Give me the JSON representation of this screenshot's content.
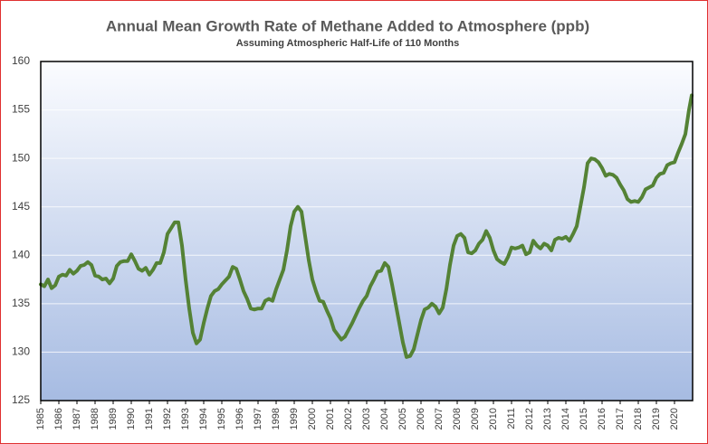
{
  "chart_data": {
    "type": "line",
    "title": "Annual Mean Growth Rate of Methane Added to Atmosphere (ppb)",
    "subtitle": "Assuming Atmospheric Half-Life of 110 Months",
    "x": [
      1985.0,
      1985.2,
      1985.4,
      1985.6,
      1985.8,
      1986.0,
      1986.2,
      1986.4,
      1986.6,
      1986.8,
      1987.0,
      1987.2,
      1987.4,
      1987.6,
      1987.8,
      1988.0,
      1988.2,
      1988.4,
      1988.6,
      1988.8,
      1989.0,
      1989.2,
      1989.4,
      1989.6,
      1989.8,
      1990.0,
      1990.2,
      1990.4,
      1990.6,
      1990.8,
      1991.0,
      1991.2,
      1991.4,
      1991.6,
      1991.8,
      1992.0,
      1992.2,
      1992.4,
      1992.6,
      1992.8,
      1993.0,
      1993.2,
      1993.4,
      1993.6,
      1993.8,
      1994.0,
      1994.2,
      1994.4,
      1994.6,
      1994.8,
      1995.0,
      1995.2,
      1995.4,
      1995.6,
      1995.8,
      1996.0,
      1996.2,
      1996.4,
      1996.6,
      1996.8,
      1997.0,
      1997.2,
      1997.4,
      1997.6,
      1997.8,
      1998.0,
      1998.2,
      1998.4,
      1998.6,
      1998.8,
      1999.0,
      1999.2,
      1999.4,
      1999.6,
      1999.8,
      2000.0,
      2000.2,
      2000.4,
      2000.6,
      2000.8,
      2001.0,
      2001.2,
      2001.4,
      2001.6,
      2001.8,
      2002.0,
      2002.2,
      2002.4,
      2002.6,
      2002.8,
      2003.0,
      2003.2,
      2003.4,
      2003.6,
      2003.8,
      2004.0,
      2004.2,
      2004.4,
      2004.6,
      2004.8,
      2005.0,
      2005.2,
      2005.4,
      2005.6,
      2005.8,
      2006.0,
      2006.2,
      2006.4,
      2006.6,
      2006.8,
      2007.0,
      2007.2,
      2007.4,
      2007.6,
      2007.8,
      2008.0,
      2008.2,
      2008.4,
      2008.6,
      2008.8,
      2009.0,
      2009.2,
      2009.4,
      2009.6,
      2009.8,
      2010.0,
      2010.2,
      2010.4,
      2010.6,
      2010.8,
      2011.0,
      2011.2,
      2011.4,
      2011.6,
      2011.8,
      2012.0,
      2012.2,
      2012.4,
      2012.6,
      2012.8,
      2013.0,
      2013.2,
      2013.4,
      2013.6,
      2013.8,
      2014.0,
      2014.2,
      2014.4,
      2014.6,
      2014.8,
      2015.0,
      2015.2,
      2015.4,
      2015.6,
      2015.8,
      2016.0,
      2016.2,
      2016.4,
      2016.6,
      2016.8,
      2017.0,
      2017.2,
      2017.4,
      2017.6,
      2017.8,
      2018.0,
      2018.2,
      2018.4,
      2018.6,
      2018.8,
      2019.0,
      2019.2,
      2019.4,
      2019.6,
      2019.8,
      2020.0,
      2020.2,
      2020.4,
      2020.6,
      2020.8,
      2020.95
    ],
    "series": [
      {
        "color": "#548235",
        "values": [
          137.0,
          136.8,
          137.5,
          136.6,
          136.9,
          137.8,
          138.0,
          137.9,
          138.5,
          138.1,
          138.4,
          138.9,
          139.0,
          139.3,
          139.0,
          137.9,
          137.8,
          137.5,
          137.6,
          137.1,
          137.6,
          138.9,
          139.3,
          139.4,
          139.4,
          140.1,
          139.4,
          138.6,
          138.4,
          138.7,
          138.0,
          138.5,
          139.2,
          139.2,
          140.3,
          142.2,
          142.8,
          143.4,
          143.4,
          141.0,
          137.5,
          134.5,
          132.0,
          130.9,
          131.3,
          133.0,
          134.5,
          135.8,
          136.3,
          136.5,
          137.0,
          137.4,
          137.8,
          138.8,
          138.6,
          137.5,
          136.3,
          135.5,
          134.5,
          134.4,
          134.5,
          134.5,
          135.3,
          135.5,
          135.3,
          136.5,
          137.5,
          138.5,
          140.5,
          143.0,
          144.5,
          145.0,
          144.5,
          142.0,
          139.5,
          137.5,
          136.3,
          135.3,
          135.2,
          134.3,
          133.5,
          132.3,
          131.8,
          131.3,
          131.6,
          132.3,
          133.0,
          133.8,
          134.6,
          135.3,
          135.8,
          136.8,
          137.5,
          138.3,
          138.4,
          139.2,
          138.8,
          137.0,
          135.0,
          133.0,
          131.0,
          129.5,
          129.6,
          130.3,
          131.8,
          133.3,
          134.4,
          134.6,
          135.0,
          134.7,
          134.0,
          134.6,
          136.5,
          139.0,
          141.0,
          142.0,
          142.2,
          141.8,
          140.3,
          140.2,
          140.5,
          141.2,
          141.6,
          142.5,
          141.8,
          140.5,
          139.6,
          139.3,
          139.1,
          139.8,
          140.8,
          140.7,
          140.8,
          141.0,
          140.1,
          140.3,
          141.5,
          141.0,
          140.7,
          141.2,
          141.0,
          140.5,
          141.6,
          141.8,
          141.7,
          141.9,
          141.5,
          142.2,
          143.0,
          145.0,
          147.0,
          149.5,
          150.0,
          149.9,
          149.6,
          149.0,
          148.2,
          148.4,
          148.3,
          148.0,
          147.3,
          146.7,
          145.8,
          145.5,
          145.6,
          145.5,
          146.0,
          146.8,
          147.0,
          147.2,
          148.0,
          148.4,
          148.5,
          149.3,
          149.5,
          149.6,
          150.6,
          151.5,
          152.5,
          155.0,
          156.5
        ]
      }
    ],
    "xlim": [
      1985,
      2021
    ],
    "xticks": [
      1985,
      1986,
      1987,
      1988,
      1989,
      1990,
      1991,
      1992,
      1993,
      1994,
      1995,
      1996,
      1997,
      1998,
      1999,
      2000,
      2001,
      2002,
      2003,
      2004,
      2005,
      2006,
      2007,
      2008,
      2009,
      2010,
      2011,
      2012,
      2013,
      2014,
      2015,
      2016,
      2017,
      2018,
      2019,
      2020
    ],
    "ylim": [
      125,
      160
    ],
    "yticks": [
      125,
      130,
      135,
      140,
      145,
      150,
      155,
      160
    ],
    "grid": true
  }
}
